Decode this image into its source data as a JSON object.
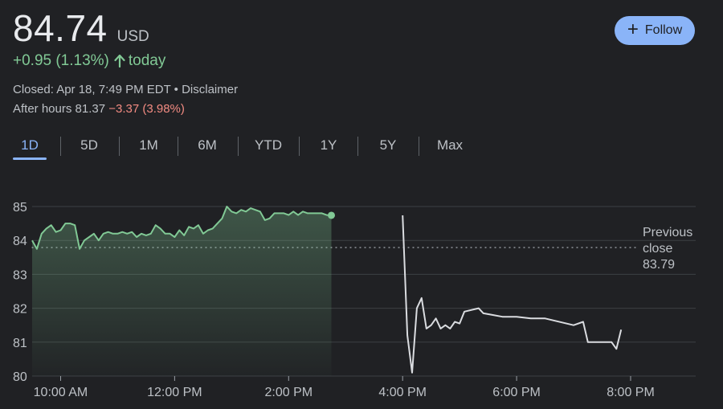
{
  "header": {
    "price": "84.74",
    "currency": "USD",
    "change_text": "+0.95 (1.13%)",
    "change_suffix": "today",
    "closed_text": "Closed: Apr 18, 7:49 PM EDT • Disclaimer",
    "after_hours_label": "After hours 81.37",
    "after_hours_change": "−3.37 (3.98%)",
    "follow_label": "Follow"
  },
  "tabs": [
    "1D",
    "5D",
    "1M",
    "6M",
    "YTD",
    "1Y",
    "5Y",
    "Max"
  ],
  "active_tab": "1D",
  "colors": {
    "positive": "#81c995",
    "negative": "#f28b82",
    "accent": "#8ab4f8",
    "after_hours_line": "#dadce0",
    "background": "#202124",
    "grid": "#3c4043"
  },
  "chart_data": {
    "type": "line",
    "x_unit": "time of day",
    "ylim": [
      80,
      85
    ],
    "yticks": [
      "80",
      "81",
      "82",
      "83",
      "84",
      "85"
    ],
    "xticks": [
      {
        "t": "10:00",
        "label": "10:00 AM"
      },
      {
        "t": "12:00",
        "label": "12:00 PM"
      },
      {
        "t": "14:00",
        "label": "2:00 PM"
      },
      {
        "t": "16:00",
        "label": "4:00 PM"
      },
      {
        "t": "18:00",
        "label": "6:00 PM"
      },
      {
        "t": "20:00",
        "label": "8:00 PM"
      }
    ],
    "reference_line": {
      "value": 83.79,
      "label": [
        "Previous",
        "close",
        "83.79"
      ]
    },
    "grid": true,
    "series": [
      {
        "session": "regular",
        "t_start": "09:30",
        "t_step_minutes": 5,
        "values": [
          84.0,
          83.75,
          84.2,
          84.35,
          84.45,
          84.25,
          84.3,
          84.5,
          84.5,
          84.45,
          83.75,
          84.0,
          84.1,
          84.2,
          84.0,
          84.2,
          84.25,
          84.2,
          84.2,
          84.25,
          84.2,
          84.25,
          84.1,
          84.2,
          84.15,
          84.2,
          84.45,
          84.35,
          84.2,
          84.2,
          84.1,
          84.3,
          84.15,
          84.4,
          84.35,
          84.45,
          84.2,
          84.3,
          84.35,
          84.5,
          84.65,
          85.0,
          84.85,
          84.8,
          84.9,
          84.85,
          84.95,
          84.9,
          84.85,
          84.6,
          84.65,
          84.8,
          84.8,
          84.8,
          84.75,
          84.85,
          84.75,
          84.85,
          84.8,
          84.8,
          84.8,
          84.8,
          84.75,
          84.74
        ],
        "end_marker": true
      },
      {
        "session": "after_hours",
        "points": [
          [
            "16:00",
            84.74
          ],
          [
            "16:05",
            81.2
          ],
          [
            "16:10",
            80.1
          ],
          [
            "16:15",
            82.0
          ],
          [
            "16:20",
            82.3
          ],
          [
            "16:25",
            81.4
          ],
          [
            "16:30",
            81.5
          ],
          [
            "16:35",
            81.7
          ],
          [
            "16:40",
            81.4
          ],
          [
            "16:45",
            81.5
          ],
          [
            "16:50",
            81.4
          ],
          [
            "16:55",
            81.6
          ],
          [
            "17:00",
            81.55
          ],
          [
            "17:05",
            81.9
          ],
          [
            "17:20",
            82.0
          ],
          [
            "17:25",
            81.85
          ],
          [
            "17:35",
            81.8
          ],
          [
            "17:45",
            81.75
          ],
          [
            "18:00",
            81.75
          ],
          [
            "18:15",
            81.7
          ],
          [
            "18:30",
            81.7
          ],
          [
            "19:00",
            81.5
          ],
          [
            "19:10",
            81.6
          ],
          [
            "19:15",
            81.0
          ],
          [
            "19:30",
            81.0
          ],
          [
            "19:40",
            81.0
          ],
          [
            "19:45",
            80.8
          ],
          [
            "19:50",
            81.37
          ]
        ]
      }
    ]
  }
}
